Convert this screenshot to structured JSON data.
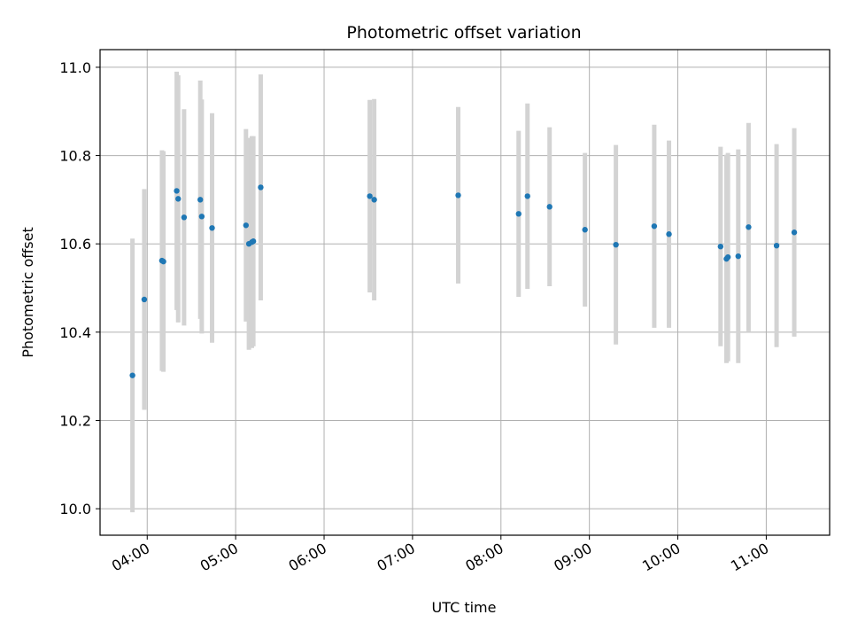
{
  "chart_data": {
    "type": "scatter",
    "title": "Photometric offset variation",
    "xlabel": "UTC time",
    "ylabel": "Photometric offset",
    "x_is_time": true,
    "xlim": [
      "03:28",
      "11:43"
    ],
    "ylim": [
      9.94,
      11.04
    ],
    "x_ticks": [
      "04:00",
      "05:00",
      "06:00",
      "07:00",
      "08:00",
      "09:00",
      "10:00",
      "11:00"
    ],
    "y_ticks": [
      "10.0",
      "10.2",
      "10.4",
      "10.6",
      "10.8",
      "11.0"
    ],
    "grid": true,
    "colors": {
      "points": "#1f77b4",
      "errorbars": "#d3d3d3",
      "grid": "#b0b0b0"
    },
    "points": [
      {
        "time": "03:50",
        "y": 10.302,
        "err": 0.31
      },
      {
        "time": "03:58",
        "y": 10.474,
        "err": 0.25
      },
      {
        "time": "04:10",
        "y": 10.562,
        "err": 0.25
      },
      {
        "time": "04:11",
        "y": 10.56,
        "err": 0.25
      },
      {
        "time": "04:20",
        "y": 10.72,
        "err": 0.27
      },
      {
        "time": "04:21",
        "y": 10.702,
        "err": 0.28
      },
      {
        "time": "04:25",
        "y": 10.66,
        "err": 0.245
      },
      {
        "time": "04:36",
        "y": 10.7,
        "err": 0.27
      },
      {
        "time": "04:37",
        "y": 10.662,
        "err": 0.265
      },
      {
        "time": "04:44",
        "y": 10.636,
        "err": 0.26
      },
      {
        "time": "05:07",
        "y": 10.642,
        "err": 0.218
      },
      {
        "time": "05:09",
        "y": 10.6,
        "err": 0.24
      },
      {
        "time": "05:11",
        "y": 10.604,
        "err": 0.24
      },
      {
        "time": "05:12",
        "y": 10.606,
        "err": 0.238
      },
      {
        "time": "05:17",
        "y": 10.728,
        "err": 0.256
      },
      {
        "time": "06:31",
        "y": 10.708,
        "err": 0.218
      },
      {
        "time": "06:34",
        "y": 10.7,
        "err": 0.228
      },
      {
        "time": "07:31",
        "y": 10.71,
        "err": 0.2
      },
      {
        "time": "08:12",
        "y": 10.668,
        "err": 0.188
      },
      {
        "time": "08:18",
        "y": 10.708,
        "err": 0.21
      },
      {
        "time": "08:33",
        "y": 10.684,
        "err": 0.18
      },
      {
        "time": "08:57",
        "y": 10.632,
        "err": 0.174
      },
      {
        "time": "09:18",
        "y": 10.598,
        "err": 0.226
      },
      {
        "time": "09:44",
        "y": 10.64,
        "err": 0.23
      },
      {
        "time": "09:54",
        "y": 10.622,
        "err": 0.212
      },
      {
        "time": "10:29",
        "y": 10.594,
        "err": 0.226
      },
      {
        "time": "10:33",
        "y": 10.566,
        "err": 0.236
      },
      {
        "time": "10:34",
        "y": 10.57,
        "err": 0.236
      },
      {
        "time": "10:41",
        "y": 10.572,
        "err": 0.242
      },
      {
        "time": "10:48",
        "y": 10.638,
        "err": 0.236
      },
      {
        "time": "11:07",
        "y": 10.596,
        "err": 0.23
      },
      {
        "time": "11:19",
        "y": 10.626,
        "err": 0.236
      }
    ]
  }
}
